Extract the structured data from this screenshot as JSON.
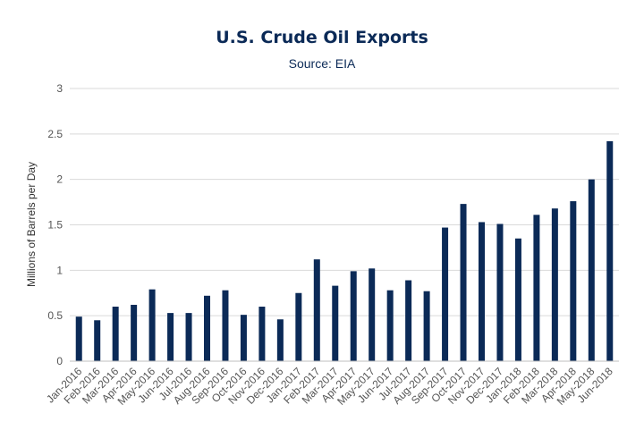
{
  "chart_data": {
    "type": "bar",
    "title": "U.S. Crude Oil Exports",
    "subtitle": "Source: EIA",
    "xlabel": "",
    "ylabel": "Millions of Barrels per Day",
    "ylim": [
      0,
      3
    ],
    "yticks": [
      "0",
      "0.5",
      "1",
      "1.5",
      "2",
      "2.5",
      "3"
    ],
    "grid": true,
    "color": "#0b2a57",
    "categories": [
      "Jan-2016",
      "Feb-2016",
      "Mar-2016",
      "Apr-2016",
      "May-2016",
      "Jun-2016",
      "Jul-2016",
      "Aug-2016",
      "Sep-2016",
      "Oct-2016",
      "Nov-2016",
      "Dec-2016",
      "Jan-2017",
      "Feb-2017",
      "Mar-2017",
      "Apr-2017",
      "May-2017",
      "Jun-2017",
      "Jul-2017",
      "Aug-2017",
      "Sep-2017",
      "Oct-2017",
      "Nov-2017",
      "Dec-2017",
      "Jan-2018",
      "Feb-2018",
      "Mar-2018",
      "Apr-2018",
      "May-2018",
      "Jun-2018"
    ],
    "values": [
      0.49,
      0.45,
      0.6,
      0.62,
      0.79,
      0.53,
      0.53,
      0.72,
      0.78,
      0.51,
      0.6,
      0.46,
      0.75,
      1.12,
      0.83,
      0.99,
      1.02,
      0.78,
      0.89,
      0.77,
      1.47,
      1.73,
      1.53,
      1.51,
      1.35,
      1.61,
      1.68,
      1.76,
      2.0,
      2.42
    ]
  }
}
